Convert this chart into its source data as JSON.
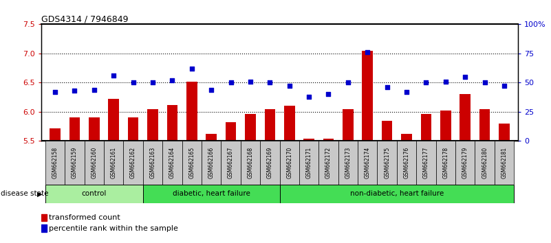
{
  "title": "GDS4314 / 7946849",
  "samples": [
    "GSM662158",
    "GSM662159",
    "GSM662160",
    "GSM662161",
    "GSM662162",
    "GSM662163",
    "GSM662164",
    "GSM662165",
    "GSM662166",
    "GSM662167",
    "GSM662168",
    "GSM662169",
    "GSM662170",
    "GSM662171",
    "GSM662172",
    "GSM662173",
    "GSM662174",
    "GSM662175",
    "GSM662176",
    "GSM662177",
    "GSM662178",
    "GSM662179",
    "GSM662180",
    "GSM662181"
  ],
  "bar_values": [
    5.72,
    5.9,
    5.9,
    6.22,
    5.9,
    6.04,
    6.12,
    6.52,
    5.62,
    5.82,
    5.96,
    6.04,
    6.1,
    5.54,
    5.54,
    6.04,
    7.04,
    5.84,
    5.62,
    5.96,
    6.02,
    6.3,
    6.04,
    5.8
  ],
  "percentile_values": [
    42,
    43,
    44,
    56,
    50,
    50,
    52,
    62,
    44,
    50,
    51,
    50,
    47,
    38,
    40,
    50,
    76,
    46,
    42,
    50,
    51,
    55,
    50,
    47
  ],
  "bar_color": "#CC0000",
  "dot_color": "#0000CC",
  "ylim_left": [
    5.5,
    7.5
  ],
  "ylim_right": [
    0,
    100
  ],
  "yticks_left": [
    5.5,
    6.0,
    6.5,
    7.0,
    7.5
  ],
  "yticks_right": [
    0,
    25,
    50,
    75,
    100
  ],
  "ytick_labels_right": [
    "0",
    "25",
    "50",
    "75",
    "100%"
  ],
  "groups_info": [
    {
      "start": 0,
      "end": 5,
      "label": "control",
      "color": "#AAEEA0"
    },
    {
      "start": 5,
      "end": 12,
      "label": "diabetic, heart failure",
      "color": "#44DD55"
    },
    {
      "start": 12,
      "end": 24,
      "label": "non-diabetic, heart failure",
      "color": "#44DD55"
    }
  ],
  "disease_state_label": "disease state",
  "legend_bar_label": "transformed count",
  "legend_dot_label": "percentile rank within the sample",
  "bar_baseline": 5.5,
  "tick_box_color": "#C8C8C8",
  "plot_bg": "#FFFFFF",
  "grid_color": "#000000"
}
